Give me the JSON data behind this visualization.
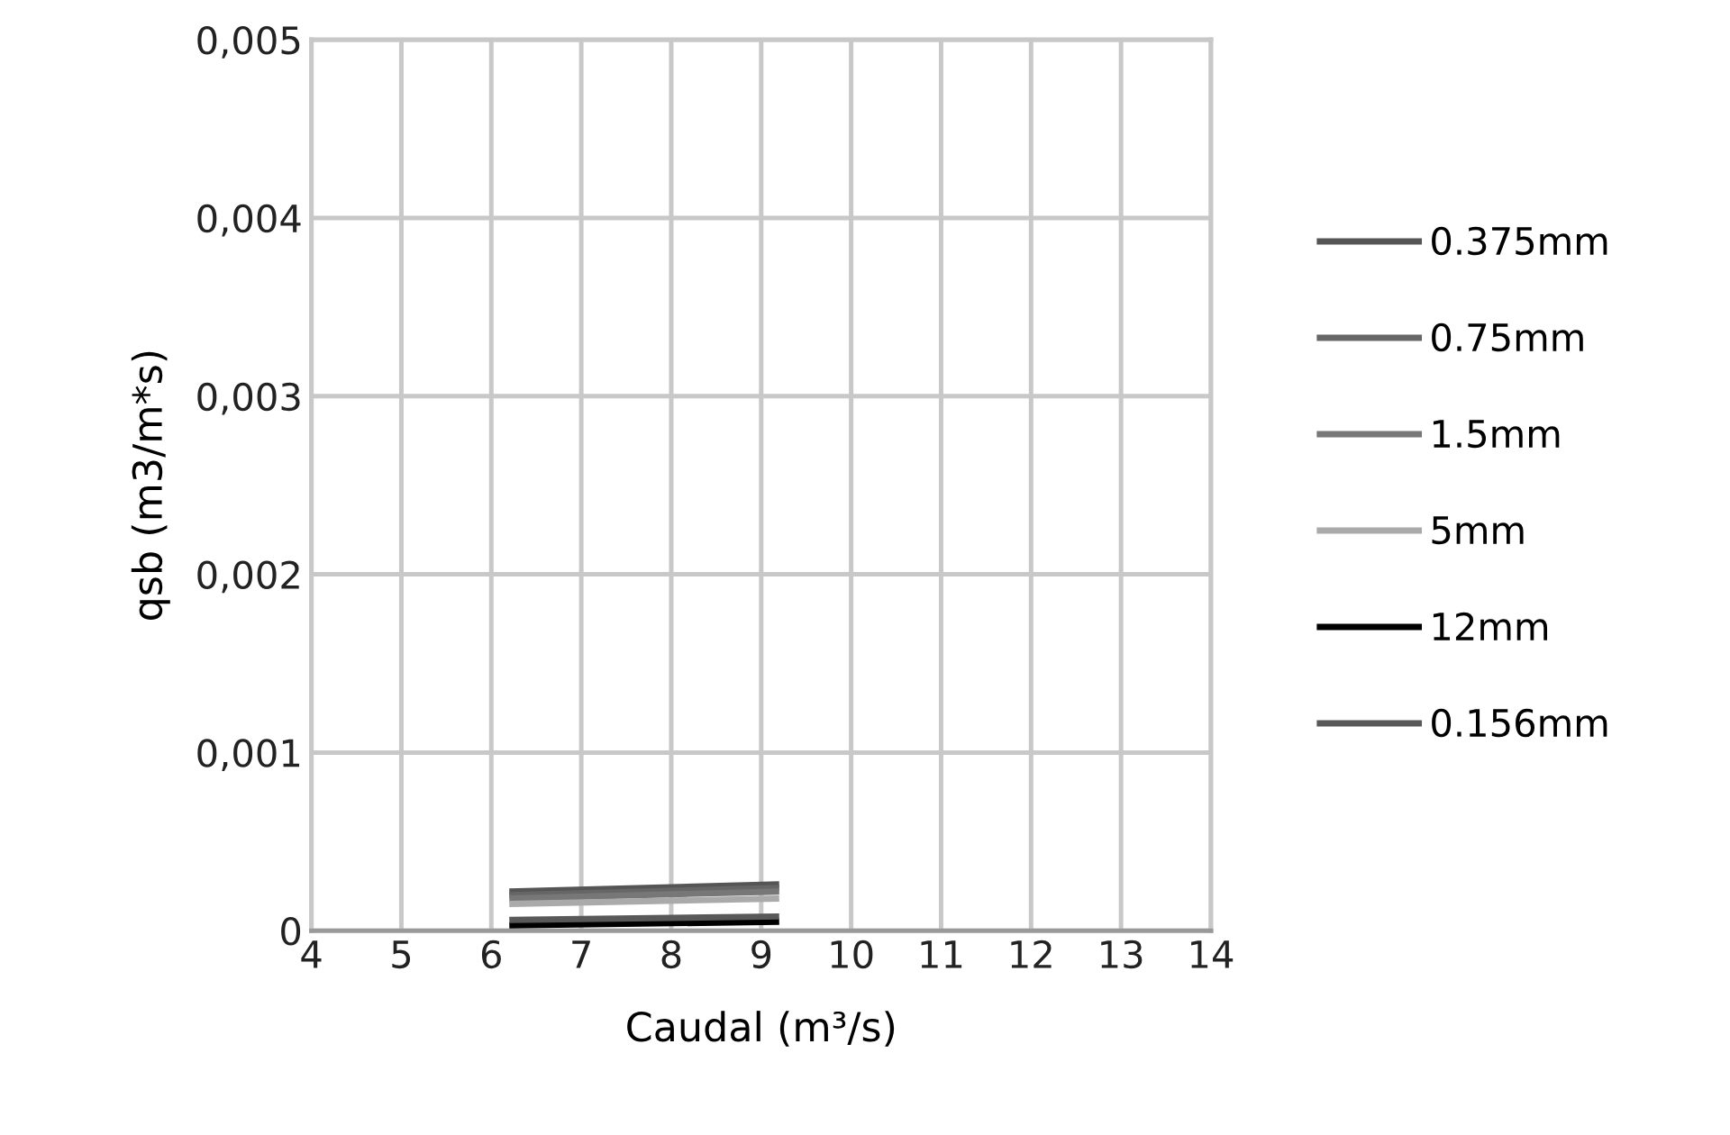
{
  "chart_data": {
    "type": "line",
    "xlabel": "Caudal (m³/s)",
    "ylabel": "qsb (m3/m*s)",
    "xlim": [
      4,
      14
    ],
    "xticks": [
      4,
      5,
      6,
      7,
      8,
      9,
      10,
      11,
      12,
      13,
      14
    ],
    "ylim": [
      0,
      0.005
    ],
    "yticks": [
      0,
      {
        "value": 0.001,
        "label": "0,001"
      },
      {
        "value": 0.002,
        "label": "0,002"
      },
      {
        "value": 0.003,
        "label": "0,003"
      },
      {
        "value": 0.004,
        "label": "0,004"
      },
      {
        "value": 0.005,
        "label": "0,005"
      }
    ],
    "grid": true,
    "legend": "right",
    "marker": "none",
    "line_style": "solid",
    "x": [
      6.2,
      9.2
    ],
    "series": [
      {
        "name": "0.375mm",
        "color": "#555555",
        "values": [
          0.00022,
          0.00026
        ]
      },
      {
        "name": "0.75mm",
        "color": "#666666",
        "values": [
          0.0002,
          0.00024
        ]
      },
      {
        "name": "1.5mm",
        "color": "#777777",
        "values": [
          0.00018,
          0.00022
        ]
      },
      {
        "name": "5mm",
        "color": "#aaaaaa",
        "values": [
          0.00015,
          0.00018
        ]
      },
      {
        "name": "12mm",
        "color": "#000000",
        "values": [
          3e-05,
          5e-05
        ]
      },
      {
        "name": "0.156mm",
        "color": "#595959",
        "values": [
          6e-05,
          8e-05
        ]
      }
    ]
  }
}
